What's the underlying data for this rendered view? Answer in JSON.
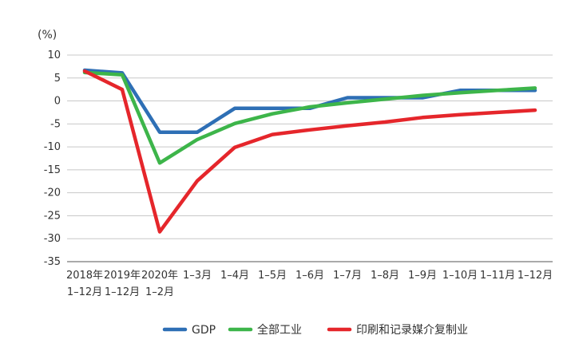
{
  "chart_data": {
    "type": "line",
    "unit_label": "(%)",
    "ylim": [
      -35,
      10
    ],
    "yticks": [
      10,
      5,
      0,
      -5,
      -10,
      -15,
      -20,
      -25,
      -30,
      -35
    ],
    "grid": true,
    "legend_position": "bottom",
    "x_labels": [
      [
        "2018年",
        "1–12月"
      ],
      [
        "2019年",
        "1–12月"
      ],
      [
        "2020年",
        "1–2月"
      ],
      [
        "1–3月"
      ],
      [
        "1–4月"
      ],
      [
        "1–5月"
      ],
      [
        "1–6月"
      ],
      [
        "1–7月"
      ],
      [
        "1–8月"
      ],
      [
        "1–9月"
      ],
      [
        "1–10月"
      ],
      [
        "1–11月"
      ],
      [
        "1–12月"
      ]
    ],
    "series": [
      {
        "name": "GDP",
        "color": "#2e6fb5",
        "values": [
          6.7,
          6.1,
          -6.8,
          -6.8,
          -1.6,
          -1.6,
          -1.6,
          0.7,
          0.7,
          0.7,
          2.3,
          2.3,
          2.3
        ]
      },
      {
        "name": "全部工业",
        "color": "#3db54a",
        "values": [
          6.2,
          5.7,
          -13.5,
          -8.4,
          -4.9,
          -2.8,
          -1.3,
          -0.4,
          0.4,
          1.2,
          1.8,
          2.3,
          2.8
        ]
      },
      {
        "name": "印刷和记录媒介复制业",
        "color": "#e5262b",
        "values": [
          6.5,
          2.5,
          -28.5,
          -17.4,
          -10.1,
          -7.3,
          -6.3,
          -5.4,
          -4.6,
          -3.6,
          -3.0,
          -2.5,
          -2.0
        ]
      }
    ]
  }
}
